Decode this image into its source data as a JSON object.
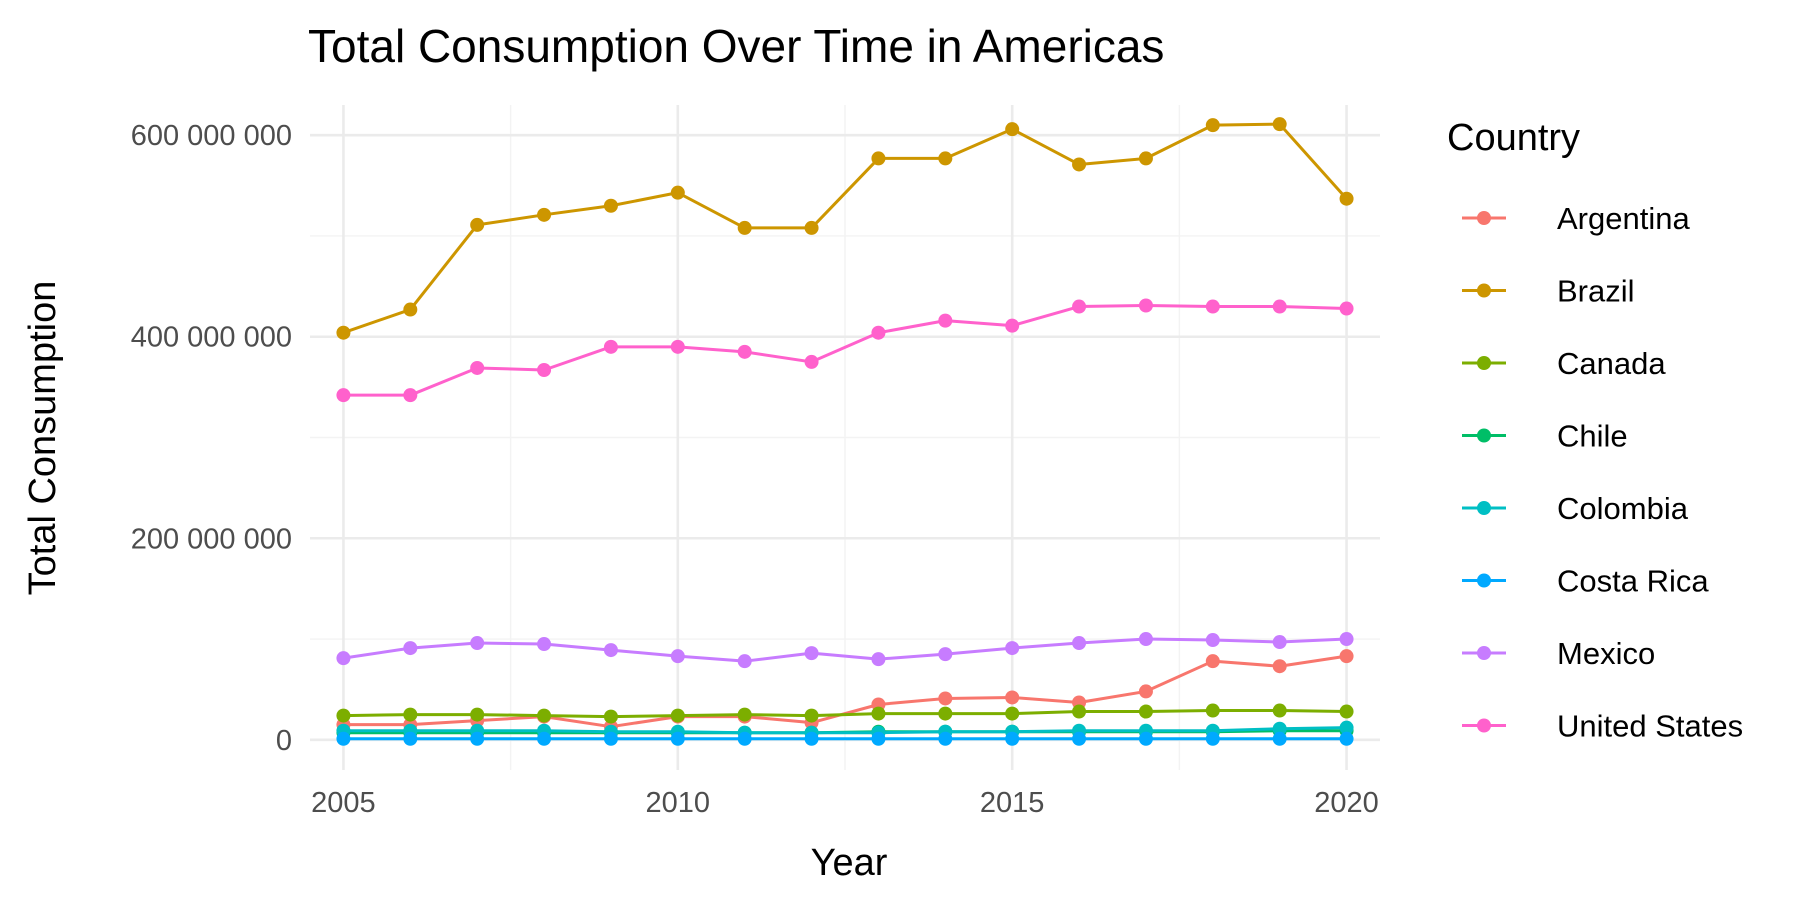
{
  "chart_data": {
    "type": "line",
    "title": "Total Consumption Over Time in Americas",
    "xlabel": "Year",
    "ylabel": "Total Consumption",
    "legend_title": "Country",
    "legend_position": "right",
    "grid": true,
    "xlim": [
      2004.5,
      2020.5
    ],
    "ylim": [
      -30000000,
      630000000
    ],
    "x_ticks": [
      2005,
      2010,
      2015,
      2020
    ],
    "x_tick_labels": [
      "2005",
      "2010",
      "2015",
      "2020"
    ],
    "y_ticks": [
      0,
      200000000,
      400000000,
      600000000
    ],
    "y_tick_labels": [
      "0",
      "200 000 000",
      "400 000 000",
      "600 000 000"
    ],
    "x": [
      2005,
      2006,
      2007,
      2008,
      2009,
      2010,
      2011,
      2012,
      2013,
      2014,
      2015,
      2016,
      2017,
      2018,
      2019,
      2020
    ],
    "series": [
      {
        "name": "Argentina",
        "color": "#F8766D",
        "values": [
          15000000,
          15000000,
          19000000,
          23000000,
          13000000,
          23000000,
          23000000,
          17000000,
          35000000,
          41000000,
          42000000,
          37000000,
          48000000,
          78000000,
          73000000,
          83000000
        ]
      },
      {
        "name": "Brazil",
        "color": "#CD9600",
        "values": [
          404000000,
          427000000,
          511000000,
          521000000,
          530000000,
          543000000,
          508000000,
          508000000,
          577000000,
          577000000,
          606000000,
          571000000,
          577000000,
          610000000,
          611000000,
          537000000
        ]
      },
      {
        "name": "Canada",
        "color": "#7CAE00",
        "values": [
          24000000,
          25000000,
          25000000,
          24000000,
          23000000,
          24000000,
          25000000,
          24000000,
          26000000,
          26000000,
          26000000,
          28000000,
          28000000,
          29000000,
          29000000,
          28000000
        ]
      },
      {
        "name": "Chile",
        "color": "#00BE67",
        "values": [
          7000000,
          7000000,
          7000000,
          7000000,
          7000000,
          7000000,
          7000000,
          7000000,
          8000000,
          8000000,
          8000000,
          8000000,
          8000000,
          8000000,
          9000000,
          9000000
        ]
      },
      {
        "name": "Colombia",
        "color": "#00BFC4",
        "values": [
          9000000,
          9000000,
          9000000,
          9000000,
          8000000,
          8000000,
          7000000,
          7000000,
          7000000,
          8000000,
          8000000,
          9000000,
          9000000,
          9000000,
          11000000,
          12000000
        ]
      },
      {
        "name": "Costa Rica",
        "color": "#00A9FF",
        "values": [
          1000000,
          1000000,
          1000000,
          1000000,
          1000000,
          1000000,
          1000000,
          1000000,
          1000000,
          1000000,
          1000000,
          1000000,
          1000000,
          1000000,
          1000000,
          1000000
        ]
      },
      {
        "name": "Mexico",
        "color": "#C77CFF",
        "values": [
          81000000,
          91000000,
          96000000,
          95000000,
          89000000,
          83000000,
          78000000,
          86000000,
          80000000,
          85000000,
          91000000,
          96000000,
          100000000,
          99000000,
          97000000,
          100000000
        ]
      },
      {
        "name": "United States",
        "color": "#FF61CC",
        "values": [
          342000000,
          342000000,
          369000000,
          367000000,
          390000000,
          390000000,
          385000000,
          375000000,
          404000000,
          416000000,
          411000000,
          430000000,
          431000000,
          430000000,
          430000000,
          428000000
        ]
      }
    ]
  }
}
